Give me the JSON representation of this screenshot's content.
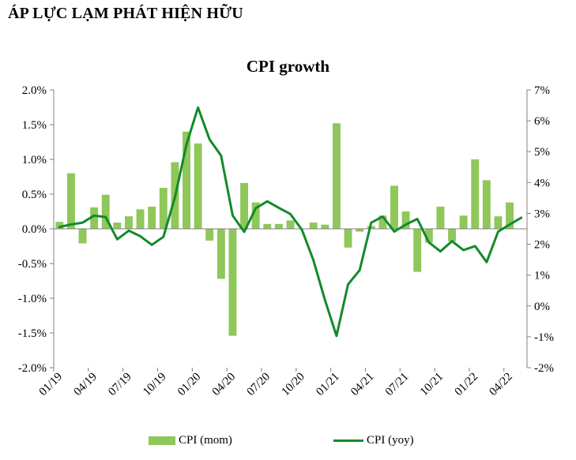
{
  "header": {
    "title": "ÁP LỰC LẠM PHÁT HIỆN HỮU"
  },
  "colors": {
    "bar": "#8fc75a",
    "line": "#138a2a",
    "axis": "#808080"
  },
  "chart_data": {
    "type": "bar+line",
    "title": "CPI growth",
    "months": [
      "01/19",
      "02/19",
      "03/19",
      "04/19",
      "05/19",
      "06/19",
      "07/19",
      "08/19",
      "09/19",
      "10/19",
      "11/19",
      "12/19",
      "01/20",
      "02/20",
      "03/20",
      "04/20",
      "05/20",
      "06/20",
      "07/20",
      "08/20",
      "09/20",
      "10/20",
      "11/20",
      "12/20",
      "01/21",
      "02/21",
      "03/21",
      "04/21",
      "05/21",
      "06/21",
      "07/21",
      "08/21",
      "09/21",
      "10/21",
      "11/21",
      "12/21",
      "01/22",
      "02/22",
      "03/22",
      "04/22",
      "05/22"
    ],
    "x_tick_labels": [
      "01/19",
      "04/19",
      "07/19",
      "10/19",
      "01/20",
      "04/20",
      "07/20",
      "10/20",
      "01/21",
      "04/21",
      "07/21",
      "10/21",
      "01/22",
      "04/22"
    ],
    "left_axis": {
      "ticks": [
        "2.0%",
        "1.5%",
        "1.0%",
        "0.5%",
        "0.0%",
        "-0.5%",
        "-1.0%",
        "-1.5%",
        "-2.0%"
      ],
      "range": [
        -2.0,
        2.0
      ]
    },
    "right_axis": {
      "ticks": [
        "7%",
        "6%",
        "5%",
        "4%",
        "3%",
        "2%",
        "1%",
        "0%",
        "-1%",
        "-2%"
      ],
      "range": [
        -2,
        7
      ]
    },
    "series": [
      {
        "name": "CPI (mom)",
        "axis": "left",
        "kind": "bar",
        "values": [
          0.1,
          0.8,
          -0.21,
          0.31,
          0.49,
          0.09,
          0.18,
          0.28,
          0.32,
          0.59,
          0.96,
          1.4,
          1.23,
          -0.17,
          -0.72,
          -1.54,
          0.66,
          0.38,
          0.07,
          0.07,
          0.12,
          0.0,
          0.09,
          0.06,
          1.52,
          -0.27,
          -0.04,
          0.04,
          0.19,
          0.62,
          0.25,
          -0.62,
          -0.2,
          0.32,
          -0.18,
          0.19,
          1.0,
          0.7,
          0.18,
          0.38,
          0.0
        ]
      },
      {
        "name": "CPI (yoy)",
        "axis": "right",
        "kind": "line",
        "values": [
          2.56,
          2.64,
          2.7,
          2.93,
          2.88,
          2.16,
          2.44,
          2.26,
          1.98,
          2.24,
          3.52,
          5.23,
          6.43,
          5.4,
          4.87,
          2.93,
          2.4,
          3.17,
          3.39,
          3.18,
          2.98,
          2.47,
          1.48,
          0.19,
          -0.97,
          0.7,
          1.16,
          2.7,
          2.9,
          2.41,
          2.64,
          2.82,
          2.06,
          1.77,
          2.1,
          1.81,
          1.94,
          1.42,
          2.41,
          2.64,
          2.86
        ]
      }
    ],
    "legend": {
      "placement": "bottom"
    }
  }
}
